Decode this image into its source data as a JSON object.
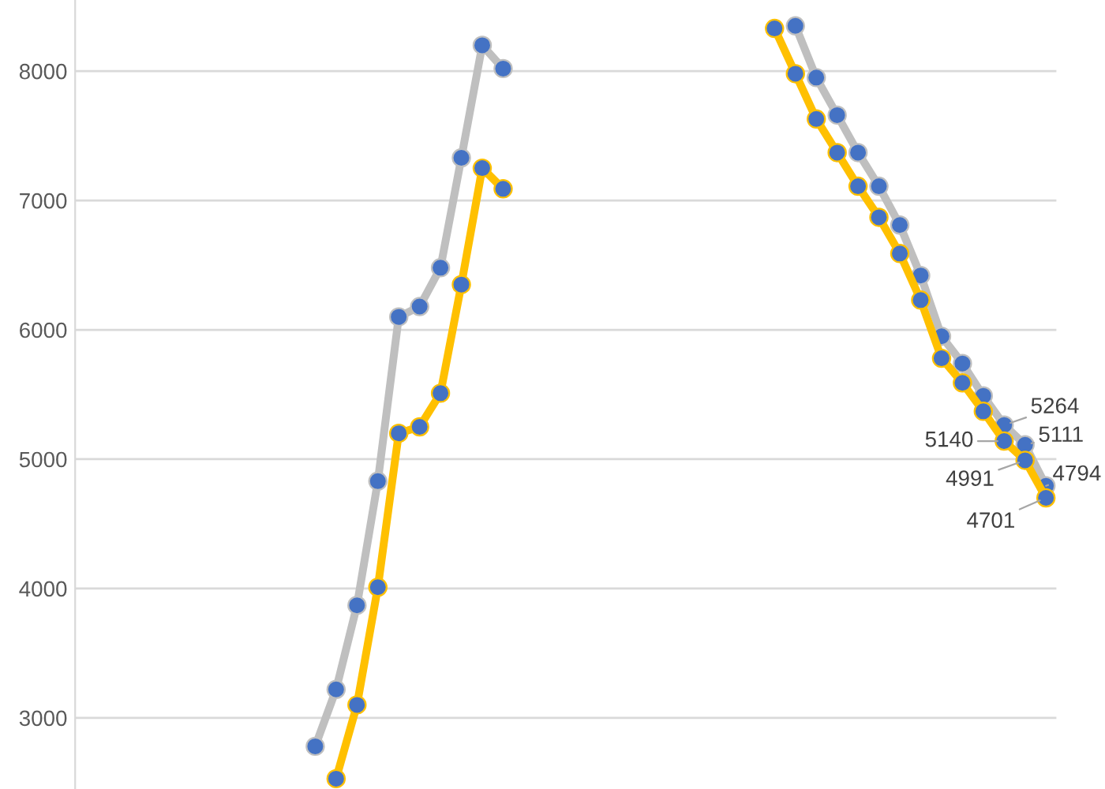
{
  "chart_data": {
    "type": "line",
    "categories": [
      null,
      null,
      null,
      null,
      null,
      null,
      null,
      null,
      null,
      null,
      null,
      null,
      null,
      null,
      null,
      null,
      null,
      null,
      null,
      null,
      null,
      null,
      null,
      null,
      null,
      null,
      null,
      null,
      null,
      null,
      null,
      null,
      null,
      null,
      null,
      null,
      null,
      null,
      null,
      null,
      null,
      null,
      null,
      null,
      null,
      null,
      null
    ],
    "series": [
      {
        "color": "#bfbfbf",
        "values": [
          null,
          null,
          null,
          null,
          null,
          null,
          null,
          null,
          null,
          null,
          null,
          2780,
          3220,
          3870,
          4830,
          6100,
          6180,
          6480,
          7330,
          8200,
          8020,
          null,
          null,
          null,
          null,
          null,
          null,
          null,
          null,
          null,
          null,
          null,
          null,
          null,
          8350,
          7950,
          7660,
          7370,
          7110,
          6810,
          6420,
          5950,
          5740,
          5490,
          5264,
          5111,
          4794
        ],
        "value_labels": [
          null,
          null,
          null,
          null,
          null,
          null,
          null,
          null,
          null,
          null,
          null,
          null,
          null,
          null,
          null,
          null,
          null,
          null,
          null,
          null,
          null,
          null,
          null,
          null,
          null,
          null,
          null,
          null,
          null,
          null,
          null,
          null,
          null,
          null,
          null,
          null,
          null,
          null,
          null,
          null,
          null,
          null,
          null,
          null,
          "5264",
          "5111",
          "4794"
        ]
      },
      {
        "color": "#ffc000",
        "values": [
          null,
          null,
          null,
          null,
          null,
          null,
          null,
          null,
          null,
          null,
          null,
          null,
          2530,
          3100,
          4010,
          5200,
          5250,
          5510,
          6350,
          7250,
          7090,
          null,
          null,
          null,
          null,
          null,
          null,
          null,
          null,
          null,
          null,
          null,
          null,
          8330,
          7980,
          7630,
          7370,
          7110,
          6870,
          6590,
          6230,
          5780,
          5590,
          5370,
          5140,
          4991,
          4701
        ],
        "value_labels": [
          null,
          null,
          null,
          null,
          null,
          null,
          null,
          null,
          null,
          null,
          null,
          null,
          null,
          null,
          null,
          null,
          null,
          null,
          null,
          null,
          null,
          null,
          null,
          null,
          null,
          null,
          null,
          null,
          null,
          null,
          null,
          null,
          null,
          null,
          null,
          null,
          null,
          null,
          null,
          null,
          null,
          null,
          null,
          null,
          "5140",
          "4991",
          "4701"
        ]
      }
    ],
    "ylim": [
      2450,
      8550
    ],
    "yticks": [
      3000,
      4000,
      5000,
      6000,
      7000,
      8000
    ],
    "grid": "y",
    "tick_labels": "y",
    "marker": "circle",
    "line_style": "solid"
  }
}
